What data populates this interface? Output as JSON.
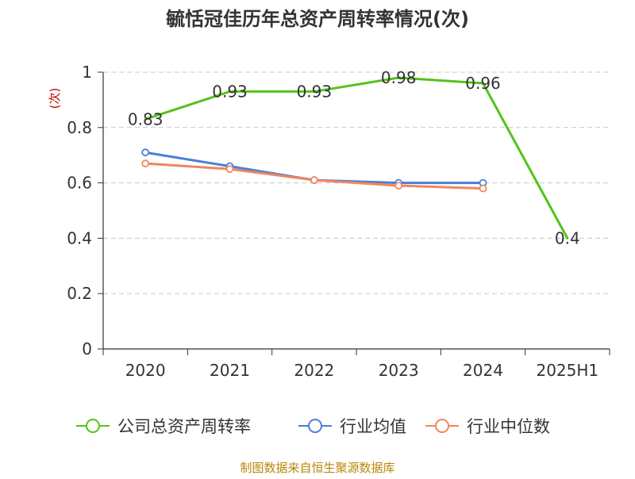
{
  "chart_data": {
    "type": "line",
    "title": "毓恬冠佳历年总资产周转率情况(次)",
    "ylabel": "(次)",
    "xlabel": "",
    "categories": [
      "2020",
      "2021",
      "2022",
      "2023",
      "2024",
      "2025H1"
    ],
    "ylim": [
      0,
      1
    ],
    "yticks": [
      0,
      0.2,
      0.4,
      0.6,
      0.8,
      1
    ],
    "ytick_labels": [
      "0",
      "0.2",
      "0.4",
      "0.6",
      "0.8",
      "1"
    ],
    "grid": true,
    "legend_position": "bottom",
    "series": [
      {
        "name": "公司总资产周转率",
        "color": "#52c41a",
        "values": [
          0.83,
          0.93,
          0.93,
          0.98,
          0.96,
          0.4
        ],
        "labels": [
          "0.83",
          "0.93",
          "0.93",
          "0.98",
          "0.96",
          "0.4"
        ],
        "show_markers": false
      },
      {
        "name": "行业均值",
        "color": "#4a7fd8",
        "values": [
          0.71,
          0.66,
          0.61,
          0.6,
          0.6,
          null
        ],
        "show_markers": true
      },
      {
        "name": "行业中位数",
        "color": "#f0875a",
        "values": [
          0.67,
          0.65,
          0.61,
          0.59,
          0.58,
          null
        ],
        "show_markers": true
      }
    ],
    "source": "制图数据来自恒生聚源数据库"
  }
}
